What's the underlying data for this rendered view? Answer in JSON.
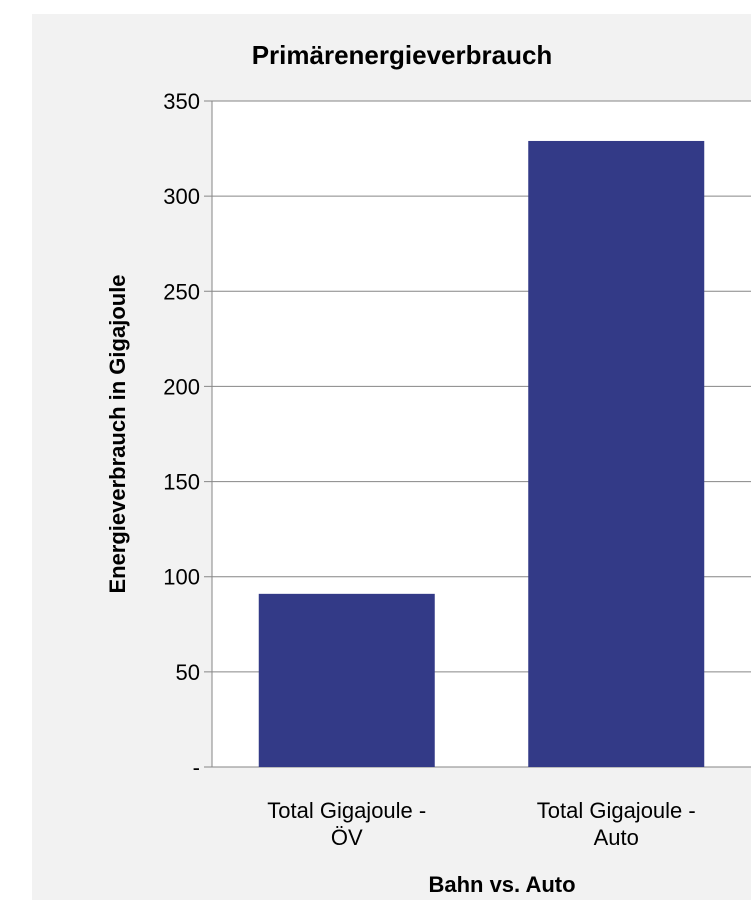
{
  "chart_data": {
    "type": "bar",
    "title": "Primärenergieverbrauch",
    "xlabel": "Bahn vs. Auto",
    "ylabel": "Energieverbrauch in Gigajoule",
    "categories": [
      [
        "Total Gigajoule -",
        "ÖV"
      ],
      [
        "Total Gigajoule -",
        "Auto"
      ]
    ],
    "values": [
      91,
      329
    ],
    "ylim": [
      0,
      350
    ],
    "yticks": [
      0,
      50,
      100,
      150,
      200,
      250,
      300,
      350
    ],
    "ytick_labels": [
      "-",
      "50",
      "100",
      "150",
      "200",
      "250",
      "300",
      "350"
    ],
    "grid": true,
    "bar_color": "#333a87",
    "background_color": "#f2f2f2",
    "plot_background": "#ffffff",
    "legend": "none"
  }
}
